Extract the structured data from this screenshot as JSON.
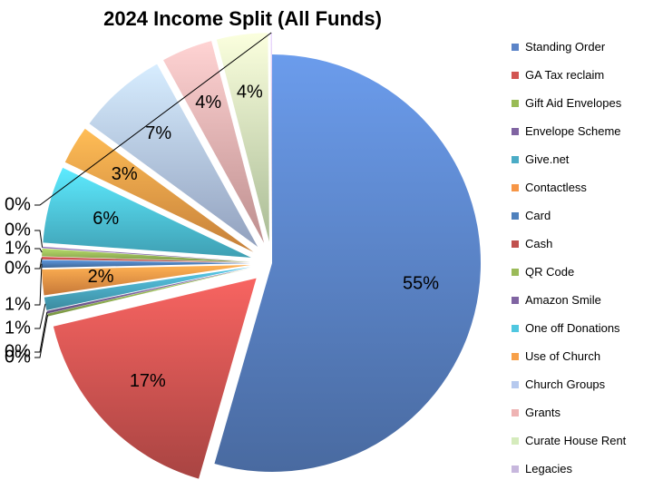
{
  "chart_data": {
    "type": "pie",
    "title": "2024 Income Split (All Funds)",
    "legend_position": "right",
    "slices": [
      {
        "name": "Standing Order",
        "value": 55,
        "label": "55%",
        "color": "#5b84c8",
        "label_pos": "inside"
      },
      {
        "name": "GA Tax reclaim",
        "value": 17,
        "label": "17%",
        "color": "#d25552",
        "label_pos": "inside"
      },
      {
        "name": "Gift Aid Envelopes",
        "value": 0.2,
        "label": "0%",
        "color": "#99bb55",
        "label_pos": "outside"
      },
      {
        "name": "Envelope Scheme",
        "value": 0.2,
        "label": "0%",
        "color": "#8064a2",
        "label_pos": "outside"
      },
      {
        "name": "Give.net",
        "value": 1,
        "label": "1%",
        "color": "#4bacc6",
        "label_pos": "outside"
      },
      {
        "name": "Contactless",
        "value": 2,
        "label": "2%",
        "color": "#f79646",
        "label_pos": "inside"
      },
      {
        "name": "Card",
        "value": 0.6,
        "label": "1%",
        "color": "#4f81bd",
        "label_pos": "outside"
      },
      {
        "name": "Cash",
        "value": 0.2,
        "label": "0%",
        "color": "#c0504d",
        "label_pos": "outside"
      },
      {
        "name": "QR Code",
        "value": 0.6,
        "label": "1%",
        "color": "#9bbb59",
        "label_pos": "outside"
      },
      {
        "name": "Amazon Smile",
        "value": 0.1,
        "label": "0%",
        "color": "#8064a2",
        "label_pos": "outside"
      },
      {
        "name": "One off Donations",
        "value": 6,
        "label": "6%",
        "color": "#4fc7e0",
        "label_pos": "inside"
      },
      {
        "name": "Use of Church",
        "value": 3,
        "label": "3%",
        "color": "#f7a049",
        "label_pos": "inside"
      },
      {
        "name": "Church Groups",
        "value": 7,
        "label": "7%",
        "color": "#b6c9ee",
        "label_pos": "inside"
      },
      {
        "name": "Grants",
        "value": 4,
        "label": "4%",
        "color": "#eeb3b3",
        "label_pos": "inside"
      },
      {
        "name": "Curate House Rent",
        "value": 4,
        "label": "4%",
        "color": "#d5ebbc",
        "label_pos": "inside"
      },
      {
        "name": "Legacies",
        "value": 0.1,
        "label": "0%",
        "color": "#c7b7dd",
        "label_pos": "outside"
      }
    ]
  }
}
